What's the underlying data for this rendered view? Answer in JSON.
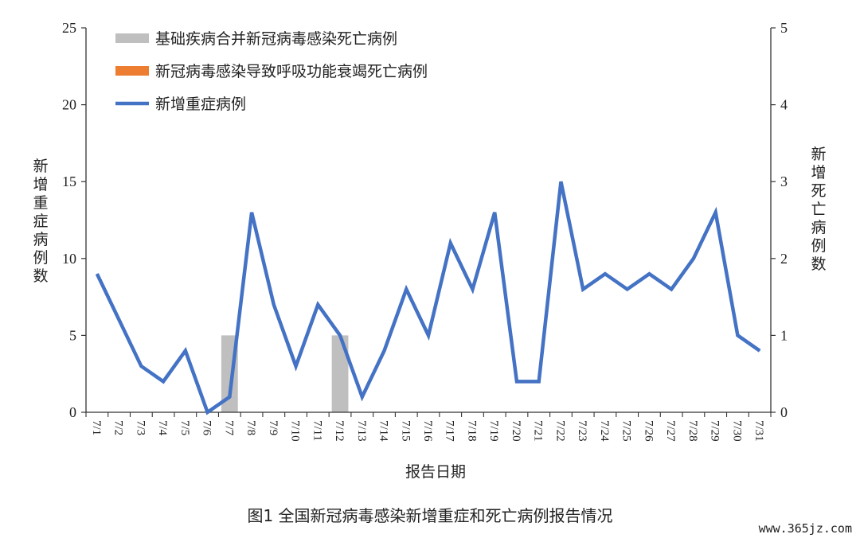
{
  "chart_data": {
    "type": "bar+line",
    "categories": [
      "7/1",
      "7/2",
      "7/3",
      "7/4",
      "7/5",
      "7/6",
      "7/7",
      "7/8",
      "7/9",
      "7/10",
      "7/11",
      "7/12",
      "7/13",
      "7/14",
      "7/15",
      "7/16",
      "7/17",
      "7/18",
      "7/19",
      "7/20",
      "7/21",
      "7/22",
      "7/23",
      "7/24",
      "7/25",
      "7/26",
      "7/27",
      "7/28",
      "7/29",
      "7/30",
      "7/31"
    ],
    "series": [
      {
        "name": "基础疾病合并新冠病毒感染死亡病例",
        "type": "bar",
        "axis": "right",
        "color": "#bfbfbf",
        "values": [
          0,
          0,
          0,
          0,
          0,
          0,
          1,
          0,
          0,
          0,
          0,
          1,
          0,
          0,
          0,
          0,
          0,
          0,
          0,
          0,
          0,
          0,
          0,
          0,
          0,
          0,
          0,
          0,
          0,
          0,
          0
        ]
      },
      {
        "name": "新冠病毒感染导致呼吸功能衰竭死亡病例",
        "type": "bar",
        "axis": "right",
        "color": "#ed7d31",
        "values": [
          0,
          0,
          0,
          0,
          0,
          0,
          0,
          0,
          0,
          0,
          0,
          0,
          0,
          0,
          0,
          0,
          0,
          0,
          0,
          0,
          0,
          0,
          0,
          0,
          0,
          0,
          0,
          0,
          0,
          0,
          0
        ]
      },
      {
        "name": "新增重症病例",
        "type": "line",
        "axis": "left",
        "color": "#4472c4",
        "values": [
          9,
          6,
          3,
          2,
          4,
          0,
          1,
          13,
          7,
          3,
          7,
          5,
          1,
          4,
          8,
          5,
          11,
          8,
          13,
          2,
          2,
          15,
          8,
          9,
          8,
          9,
          8,
          10,
          13,
          5,
          4
        ]
      }
    ],
    "y_left": {
      "label": "新增重症病例数",
      "ylim": [
        0,
        25
      ],
      "ticks": [
        "0",
        "5",
        "10",
        "15",
        "20",
        "25"
      ]
    },
    "y_right": {
      "label": "新增死亡病例数",
      "ylim": [
        0,
        5
      ],
      "ticks": [
        "0",
        "1",
        "2",
        "3",
        "4",
        "5"
      ]
    },
    "xlabel": "报告日期",
    "legend_position": "top-left",
    "grid": false
  },
  "caption": "图1 全国新冠病毒感染新增重症和死亡病例报告情况",
  "watermark": "www.365jz.com"
}
